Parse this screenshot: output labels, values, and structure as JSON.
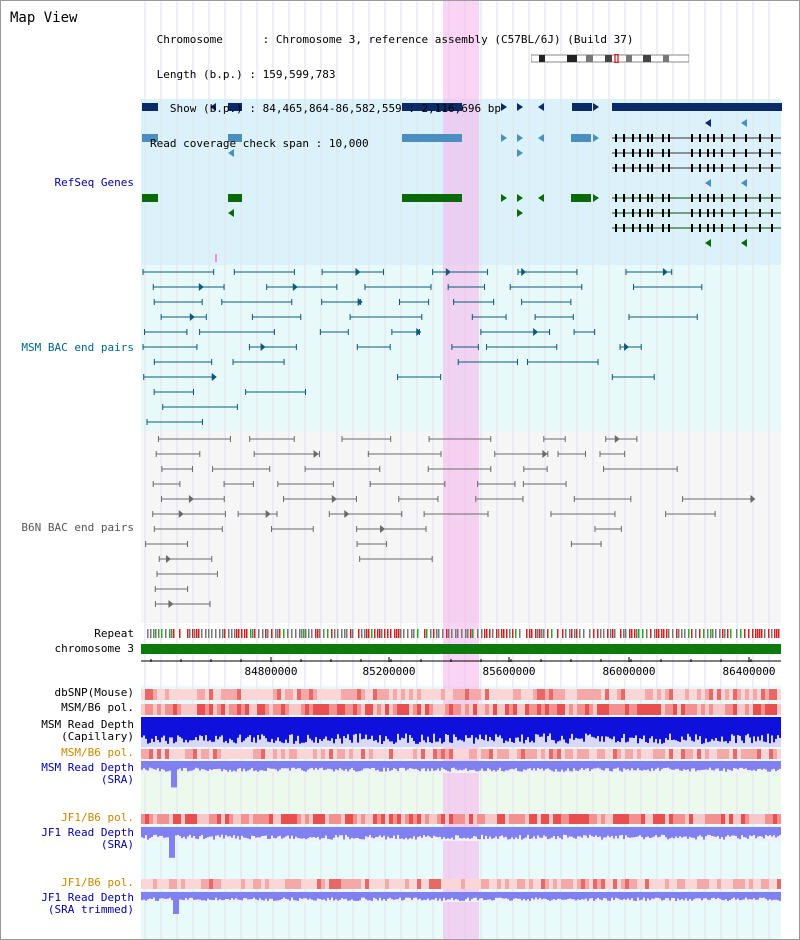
{
  "title": "Map View",
  "info": {
    "chromosome_key": "Chromosome",
    "chromosome_val": "Chromosome 3, reference assembly (C57BL/6J) (Build 37)",
    "length_key": "Length (b.p.)",
    "length_val": "159,599,783",
    "show_key": "Show (b.p.)",
    "show_val": "84,465,864-86,582,559 : 2,116,696 bp",
    "span_key": "Read coverage check span",
    "span_val": "10,000"
  },
  "tracks": {
    "refseq": "RefSeq Genes",
    "msm_bac": "MSM BAC end pairs",
    "b6n_bac": "B6N BAC end pairs",
    "repeat": "Repeat",
    "chromosome": "chromosome 3",
    "dbsnp": "dbSNP(Mouse)",
    "msm_b6_pol_1": "MSM/B6 pol.",
    "msm_read_cap_1": "MSM Read Depth",
    "msm_read_cap_2": "(Capillary)",
    "msm_b6_pol_2": "MSM/B6 pol.",
    "msm_read_sra_1": "MSM Read Depth",
    "msm_read_sra_2": "(SRA)",
    "jf1_b6_pol_1": "JF1/B6 pol.",
    "jf1_read_sra_1": "JF1 Read Depth",
    "jf1_read_sra_2": "(SRA)",
    "jf1_b6_pol_2": "JF1/B6 pol.",
    "jf1_read_trim_1": "JF1 Read Depth",
    "jf1_read_trim_2": "(SRA trimmed)"
  },
  "axis": {
    "ticks": [
      "84800000",
      "85200000",
      "85600000",
      "86000000",
      "86400000"
    ]
  },
  "colors": {
    "refseq_dark": "#0a2a6a",
    "refseq_mid": "#4a8fbf",
    "refseq_green": "#0a6a0a",
    "msm_line": "#0a5a7a",
    "b6n_line": "#6a6a6a",
    "highlight": "#f5b8ef",
    "label_blue": "#0000aa",
    "label_teal": "#006688",
    "label_orange": "#cc8800",
    "depth_dark": "#1010dd",
    "depth_light": "#8080f0"
  }
}
